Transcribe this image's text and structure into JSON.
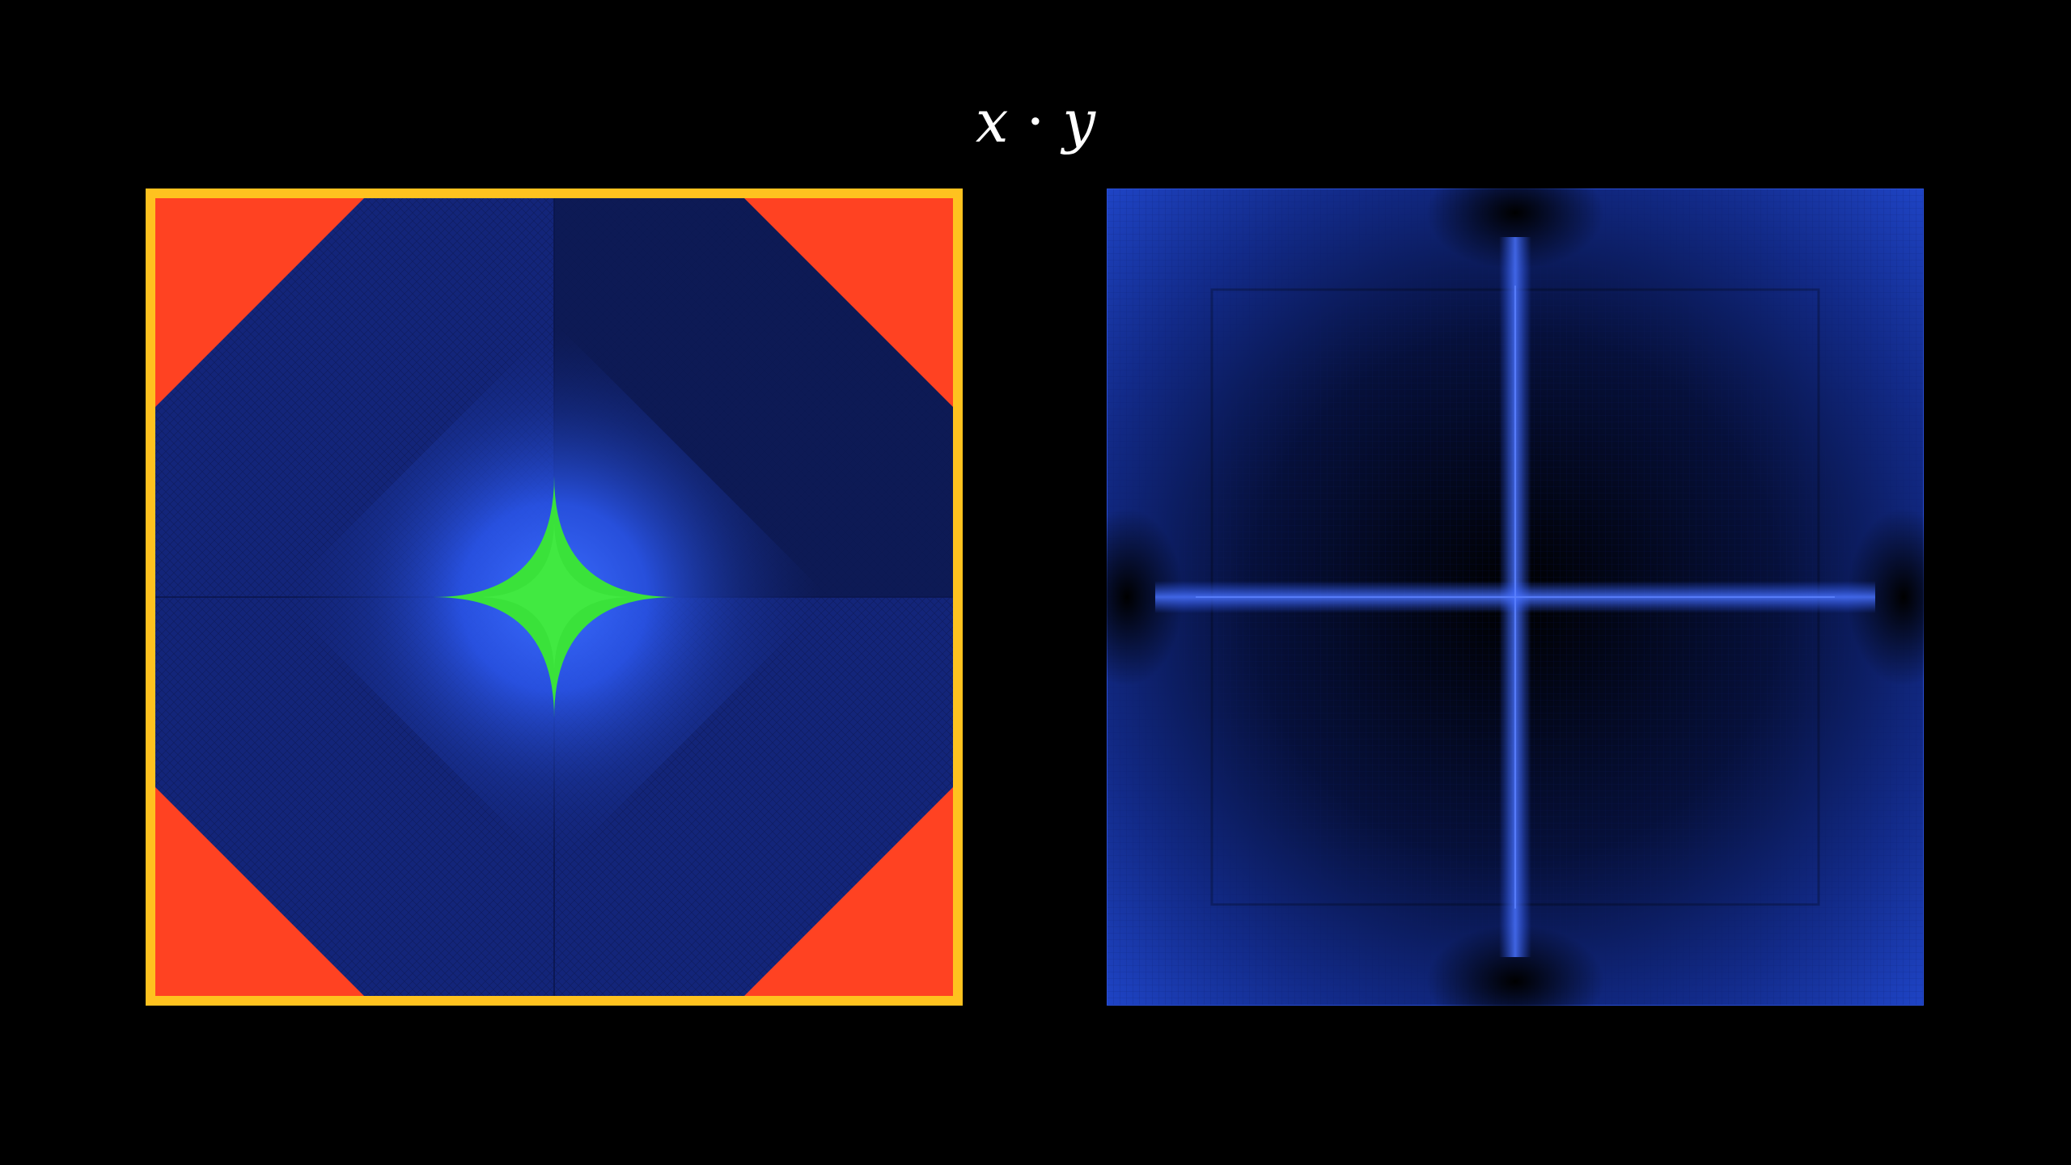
{
  "title": {
    "left_var": "x",
    "operator": "·",
    "right_var": "y"
  },
  "panels": [
    {
      "id": "left",
      "icon": "region-classification-plot",
      "colors": {
        "border": "#ffc21f",
        "corner_region": "#ff4222",
        "field": "#13257a",
        "field_dark": "#0d1a55",
        "glow": "#2f63ff",
        "center_region": "#3ae23a"
      }
    },
    {
      "id": "right",
      "icon": "error-heatmap-plot",
      "colors": {
        "field": "#1b3ab5",
        "field_dark": "#000000",
        "axis_glow": "#4a73ff"
      }
    }
  ]
}
